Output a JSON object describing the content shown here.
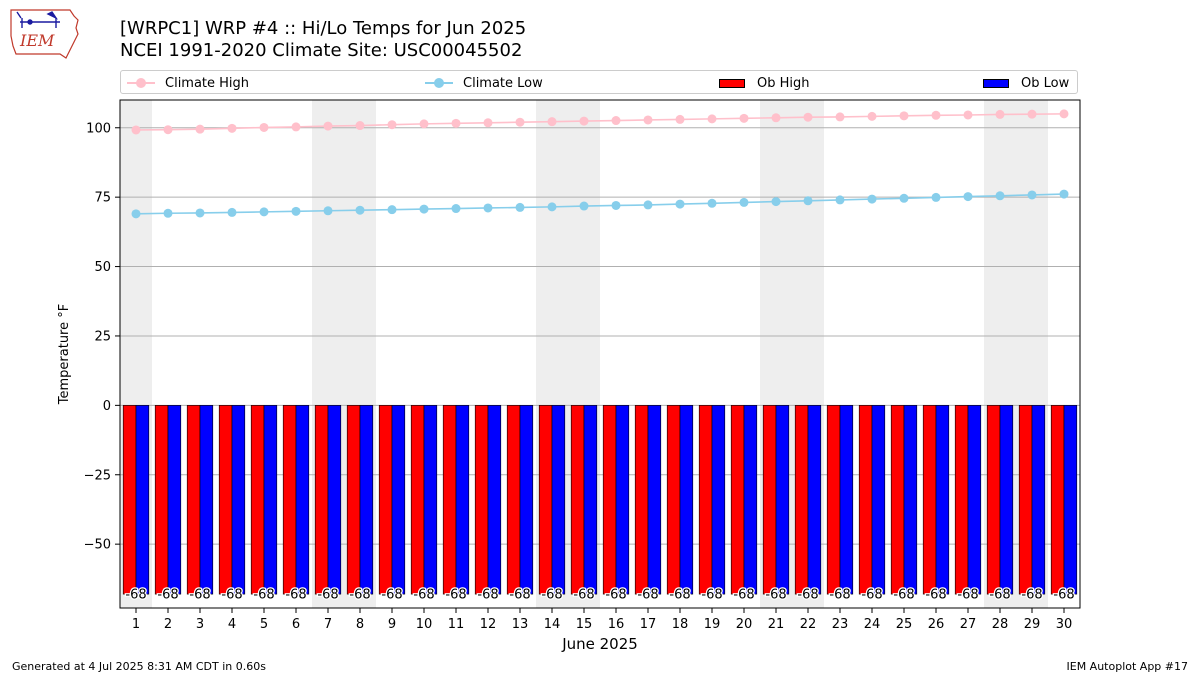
{
  "header": {
    "title_line1": "[WRPC1] WRP #4 :: Hi/Lo Temps for Jun 2025",
    "title_line2": "NCEI 1991-2020 Climate Site: USC00045502",
    "logo_text": "IEM"
  },
  "legend": [
    {
      "label": "Climate High",
      "kind": "line",
      "color": "#ffc0cb"
    },
    {
      "label": "Climate Low",
      "kind": "line",
      "color": "#87ceeb"
    },
    {
      "label": "Ob High",
      "kind": "bar",
      "color": "#ff0000"
    },
    {
      "label": "Ob Low",
      "kind": "bar",
      "color": "#0000ff"
    }
  ],
  "footer": {
    "left": "Generated at 4 Jul 2025 8:31 AM CDT in 0.60s",
    "right": "IEM Autoplot App #17"
  },
  "chart_data": {
    "type": "bar",
    "xlabel": "June 2025",
    "ylabel": "Temperature °F",
    "x": [
      1,
      2,
      3,
      4,
      5,
      6,
      7,
      8,
      9,
      10,
      11,
      12,
      13,
      14,
      15,
      16,
      17,
      18,
      19,
      20,
      21,
      22,
      23,
      24,
      25,
      26,
      27,
      28,
      29,
      30
    ],
    "ylim": [
      -73,
      110
    ],
    "yticks": [
      100,
      75,
      50,
      25,
      0,
      -25,
      -50
    ],
    "grid": true,
    "legend_position": "top",
    "weekend_shading_days": [
      1,
      7,
      8,
      14,
      15,
      21,
      22,
      28,
      29
    ],
    "series": [
      {
        "name": "Climate High",
        "kind": "line",
        "color": "#ffc0cb",
        "values": [
          99.2,
          99.3,
          99.5,
          99.8,
          100.1,
          100.3,
          100.6,
          100.8,
          101.1,
          101.4,
          101.6,
          101.8,
          102.0,
          102.2,
          102.4,
          102.6,
          102.8,
          103.0,
          103.2,
          103.4,
          103.6,
          103.8,
          103.9,
          104.1,
          104.3,
          104.5,
          104.6,
          104.8,
          104.9,
          105.0
        ]
      },
      {
        "name": "Climate Low",
        "kind": "line",
        "color": "#87ceeb",
        "values": [
          69.0,
          69.2,
          69.3,
          69.5,
          69.7,
          69.9,
          70.1,
          70.3,
          70.5,
          70.7,
          70.9,
          71.1,
          71.3,
          71.5,
          71.8,
          72.0,
          72.2,
          72.5,
          72.8,
          73.1,
          73.4,
          73.7,
          74.0,
          74.3,
          74.6,
          74.9,
          75.2,
          75.5,
          75.8,
          76.1
        ]
      },
      {
        "name": "Ob High",
        "kind": "bar",
        "color": "#ff0000",
        "values": [
          -68,
          -68,
          -68,
          -68,
          -68,
          -68,
          -68,
          -68,
          -68,
          -68,
          -68,
          -68,
          -68,
          -68,
          -68,
          -68,
          -68,
          -68,
          -68,
          -68,
          -68,
          -68,
          -68,
          -68,
          -68,
          -68,
          -68,
          -68,
          -68,
          -68
        ]
      },
      {
        "name": "Ob Low",
        "kind": "bar",
        "color": "#0000ff",
        "values": [
          -68,
          -68,
          -68,
          -68,
          -68,
          -68,
          -68,
          -68,
          -68,
          -68,
          -68,
          -68,
          -68,
          -68,
          -68,
          -68,
          -68,
          -68,
          -68,
          -68,
          -68,
          -68,
          -68,
          -68,
          -68,
          -68,
          -68,
          -68,
          -68,
          -68
        ]
      }
    ],
    "bar_label": "-68"
  }
}
